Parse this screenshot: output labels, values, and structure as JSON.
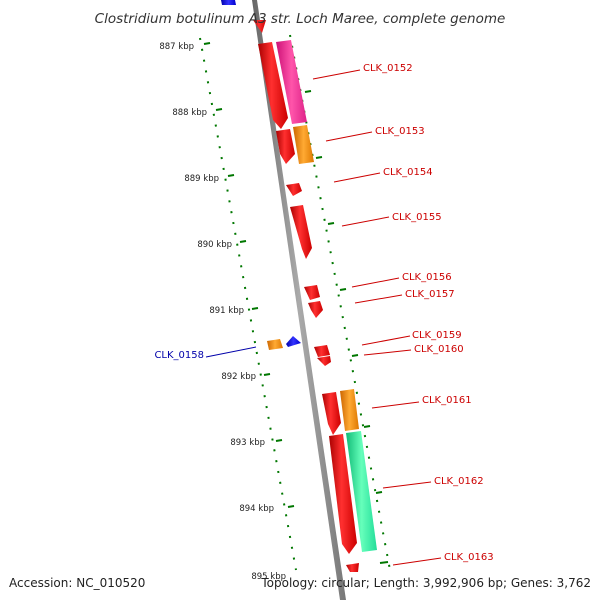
{
  "title": "Clostridium botulinum A3 str. Loch Maree, complete genome",
  "accession": "Accession: NC_010520",
  "topology": "Topology: circular; Length: 3,992,906 bp; Genes: 3,762",
  "scale_labels": [
    "887 kbp",
    "888 kbp",
    "889 kbp",
    "890 kbp",
    "891 kbp",
    "892 kbp",
    "893 kbp",
    "894 kbp",
    "895 kbp"
  ],
  "colors": {
    "backbone": "#8a8a8a",
    "gene_red": "#ff0000",
    "gene_magenta": "#ff3399",
    "gene_orange": "#ff8800",
    "gene_green": "#22ee99",
    "gene_blue": "#0000cc",
    "tick_green": "#007700",
    "label_red": "#cc0000",
    "label_blue": "#0000aa"
  },
  "gene_labels": [
    {
      "name": "CLK_0152",
      "strand": "forward"
    },
    {
      "name": "CLK_0153",
      "strand": "forward"
    },
    {
      "name": "CLK_0154",
      "strand": "forward"
    },
    {
      "name": "CLK_0155",
      "strand": "forward"
    },
    {
      "name": "CLK_0156",
      "strand": "forward"
    },
    {
      "name": "CLK_0157",
      "strand": "forward"
    },
    {
      "name": "CLK_0159",
      "strand": "forward"
    },
    {
      "name": "CLK_0160",
      "strand": "forward"
    },
    {
      "name": "CLK_0161",
      "strand": "forward"
    },
    {
      "name": "CLK_0162",
      "strand": "forward"
    },
    {
      "name": "CLK_0163",
      "strand": "forward"
    },
    {
      "name": "CLK_0158",
      "strand": "reverse"
    }
  ]
}
